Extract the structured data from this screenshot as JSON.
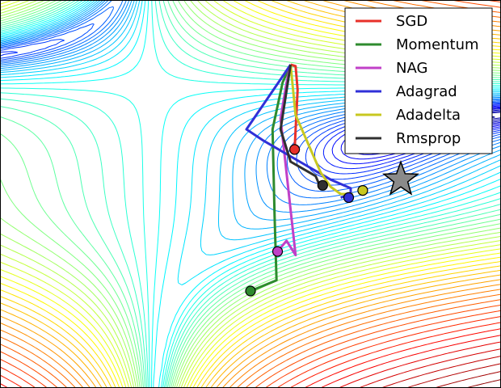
{
  "chart_data": {
    "type": "contour",
    "title": "",
    "xlabel": "",
    "ylabel": "",
    "grid": false,
    "legend_placement": "top-right",
    "colors": {
      "SGD": "#e8302a",
      "Momentum": "#2e8b2e",
      "NAG": "#c040c8",
      "Adagrad": "#3030d8",
      "Adadelta": "#c8c820",
      "Rmsprop": "#303030",
      "star_fill": "#8a8a8a",
      "frame": "#000000"
    },
    "series": [
      {
        "name": "SGD",
        "x": [
          0.4,
          0.45,
          0.47,
          0.44
        ],
        "y": [
          1.3,
          1.28,
          0.95,
          0.12
        ]
      },
      {
        "name": "Momentum",
        "x": [
          0.4,
          0.32,
          0.22,
          0.24,
          0.26,
          0.0
        ],
        "y": [
          1.3,
          1.05,
          0.4,
          -0.8,
          -1.7,
          -1.85
        ]
      },
      {
        "name": "NAG",
        "x": [
          0.4,
          0.36,
          0.3,
          0.45,
          0.36,
          0.27
        ],
        "y": [
          1.3,
          1.05,
          0.55,
          -1.35,
          -1.15,
          -1.3
        ]
      },
      {
        "name": "Adagrad",
        "x": [
          0.4,
          -0.04,
          0.12,
          0.8,
          1.0,
          1.0,
          0.9
        ],
        "y": [
          1.3,
          0.4,
          0.25,
          -0.3,
          -0.42,
          -0.5,
          -0.55
        ]
      },
      {
        "name": "Adadelta",
        "x": [
          0.4,
          0.45,
          0.7,
          0.8,
          0.9,
          1.02
        ],
        "y": [
          1.3,
          0.6,
          -0.2,
          -0.4,
          -0.5,
          -0.5
        ]
      },
      {
        "name": "Rmsprop",
        "x": [
          0.4,
          0.3,
          0.4,
          0.65,
          0.69
        ],
        "y": [
          1.3,
          0.4,
          -0.05,
          -0.25,
          -0.38
        ]
      }
    ],
    "markers": [
      {
        "name": "SGD",
        "x": 0.44,
        "y": 0.12
      },
      {
        "name": "Momentum",
        "x": 0.0,
        "y": -1.85
      },
      {
        "name": "NAG",
        "x": 0.27,
        "y": -1.3
      },
      {
        "name": "Adagrad",
        "x": 0.98,
        "y": -0.55
      },
      {
        "name": "Adadelta",
        "x": 1.12,
        "y": -0.45
      },
      {
        "name": "Rmsprop",
        "x": 0.72,
        "y": -0.38
      }
    ],
    "minimum_star": {
      "x": 1.5,
      "y": -0.3
    },
    "xlim": [
      -2.5,
      2.5
    ],
    "ylim": [
      -3.2,
      2.2
    ]
  }
}
